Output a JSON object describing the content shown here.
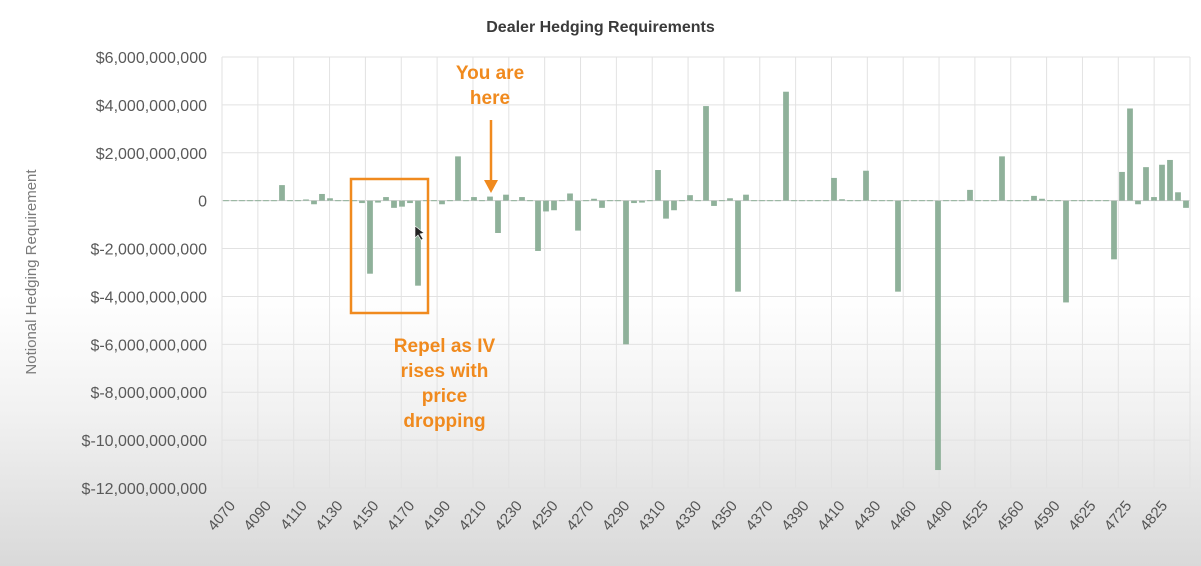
{
  "chart_data": {
    "type": "bar",
    "title": "Dealer Hedging Requirements",
    "ylabel": "Notional Hedging Requirement",
    "xlabel": "",
    "ylim": [
      -12000000000,
      6000000000
    ],
    "yticks": [
      6000000000,
      4000000000,
      2000000000,
      0,
      -2000000000,
      -4000000000,
      -6000000000,
      -8000000000,
      -10000000000,
      -12000000000
    ],
    "ytick_labels": [
      "$6,000,000,000",
      "$4,000,000,000",
      "$2,000,000,000",
      "0",
      "$-2,000,000,000",
      "$-4,000,000,000",
      "$-6,000,000,000",
      "$-8,000,000,000",
      "$-10,000,000,000",
      "$-12,000,000,000"
    ],
    "xtick_labels": [
      "4070",
      "4090",
      "4110",
      "4130",
      "4150",
      "4170",
      "4190",
      "4210",
      "4230",
      "4250",
      "4270",
      "4290",
      "4310",
      "4330",
      "4350",
      "4370",
      "4390",
      "4410",
      "4430",
      "4460",
      "4490",
      "4525",
      "4560",
      "4590",
      "4625",
      "4725",
      "4825"
    ],
    "grid": true,
    "bar_color": "#8fb19a",
    "annotation_color": "#f08a1e",
    "values": [
      0,
      0,
      0,
      0,
      0,
      0,
      0,
      650000000,
      0,
      0,
      50000000,
      -150000000,
      280000000,
      100000000,
      0,
      0,
      0,
      -100000000,
      -3050000000,
      -80000000,
      150000000,
      -300000000,
      -250000000,
      -100000000,
      -3550000000,
      0,
      0,
      -150000000,
      0,
      1850000000,
      0,
      150000000,
      0,
      170000000,
      -1350000000,
      250000000,
      0,
      150000000,
      0,
      -2100000000,
      -450000000,
      -400000000,
      0,
      300000000,
      -1250000000,
      0,
      80000000,
      -300000000,
      0,
      0,
      -6000000000,
      -100000000,
      -80000000,
      0,
      1280000000,
      -750000000,
      -400000000,
      0,
      230000000,
      0,
      3950000000,
      -220000000,
      0,
      100000000,
      -3800000000,
      250000000,
      0,
      0,
      0,
      0,
      4550000000,
      0,
      0,
      0,
      0,
      0,
      950000000,
      60000000,
      0,
      0,
      1250000000,
      0,
      0,
      0,
      -3800000000,
      0,
      0,
      0,
      0,
      -11250000000,
      0,
      0,
      0,
      450000000,
      0,
      0,
      0,
      1850000000,
      0,
      0,
      0,
      200000000,
      80000000,
      0,
      0,
      -4250000000,
      0,
      0,
      0,
      0,
      0,
      -2450000000,
      1200000000,
      3850000000,
      -150000000,
      1400000000,
      150000000,
      1500000000,
      1700000000,
      350000000,
      -300000000
    ],
    "annotations": {
      "you_are_here": [
        "You are",
        "here"
      ],
      "repel": [
        "Repel as IV",
        "rises with",
        "price",
        "dropping"
      ]
    }
  }
}
